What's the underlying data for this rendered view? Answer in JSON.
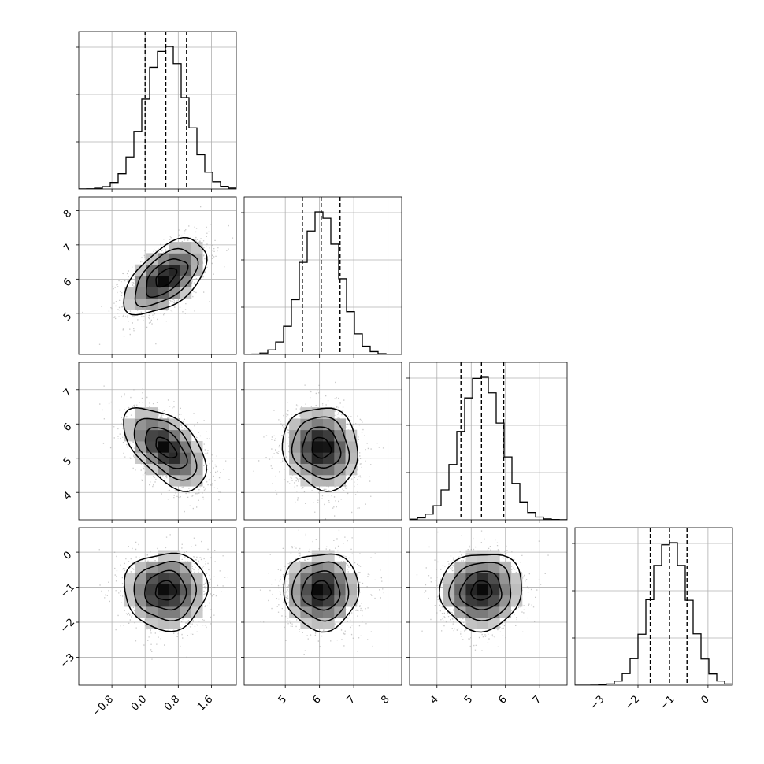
{
  "chart_data": {
    "type": "corner",
    "parameters": [
      {
        "range": [
          -1.6,
          2.2
        ],
        "ticks": [
          "−0.8",
          "0.0",
          "0.8",
          "1.6"
        ],
        "tick_values": [
          -0.8,
          0.0,
          0.8,
          1.6
        ],
        "mean": 0.5,
        "sd": 0.5,
        "quantiles": [
          0.0,
          0.5,
          1.0
        ]
      },
      {
        "range": [
          3.8,
          8.4
        ],
        "ticks": [
          "5",
          "6",
          "7",
          "8"
        ],
        "tick_values": [
          5,
          6,
          7,
          8
        ],
        "mean": 6.05,
        "sd": 0.55,
        "quantiles": [
          5.5,
          6.05,
          6.6
        ]
      },
      {
        "range": [
          3.2,
          7.8
        ],
        "ticks": [
          "4",
          "5",
          "6",
          "7"
        ],
        "tick_values": [
          4,
          5,
          6,
          7
        ],
        "mean": 5.3,
        "sd": 0.6,
        "quantiles": [
          4.7,
          5.3,
          5.95
        ]
      },
      {
        "range": [
          -3.8,
          0.7
        ],
        "ticks": [
          "−3",
          "−2",
          "−1",
          "0"
        ],
        "tick_values": [
          -3,
          -2,
          -1,
          0
        ],
        "mean": -1.1,
        "sd": 0.55,
        "quantiles": [
          -1.65,
          -1.1,
          -0.6
        ]
      }
    ],
    "correlations": [
      {
        "row": 1,
        "col": 0,
        "rho": 0.55
      },
      {
        "row": 2,
        "col": 0,
        "rho": -0.55
      },
      {
        "row": 2,
        "col": 1,
        "rho": -0.1
      },
      {
        "row": 3,
        "col": 0,
        "rho": 0.0
      },
      {
        "row": 3,
        "col": 1,
        "rho": 0.0
      },
      {
        "row": 3,
        "col": 2,
        "rho": 0.05
      }
    ],
    "contour_levels_sigma": [
      0.5,
      1.0,
      1.5,
      2.0
    ],
    "grid": true,
    "title": "",
    "xlabel": "",
    "ylabel": ""
  }
}
